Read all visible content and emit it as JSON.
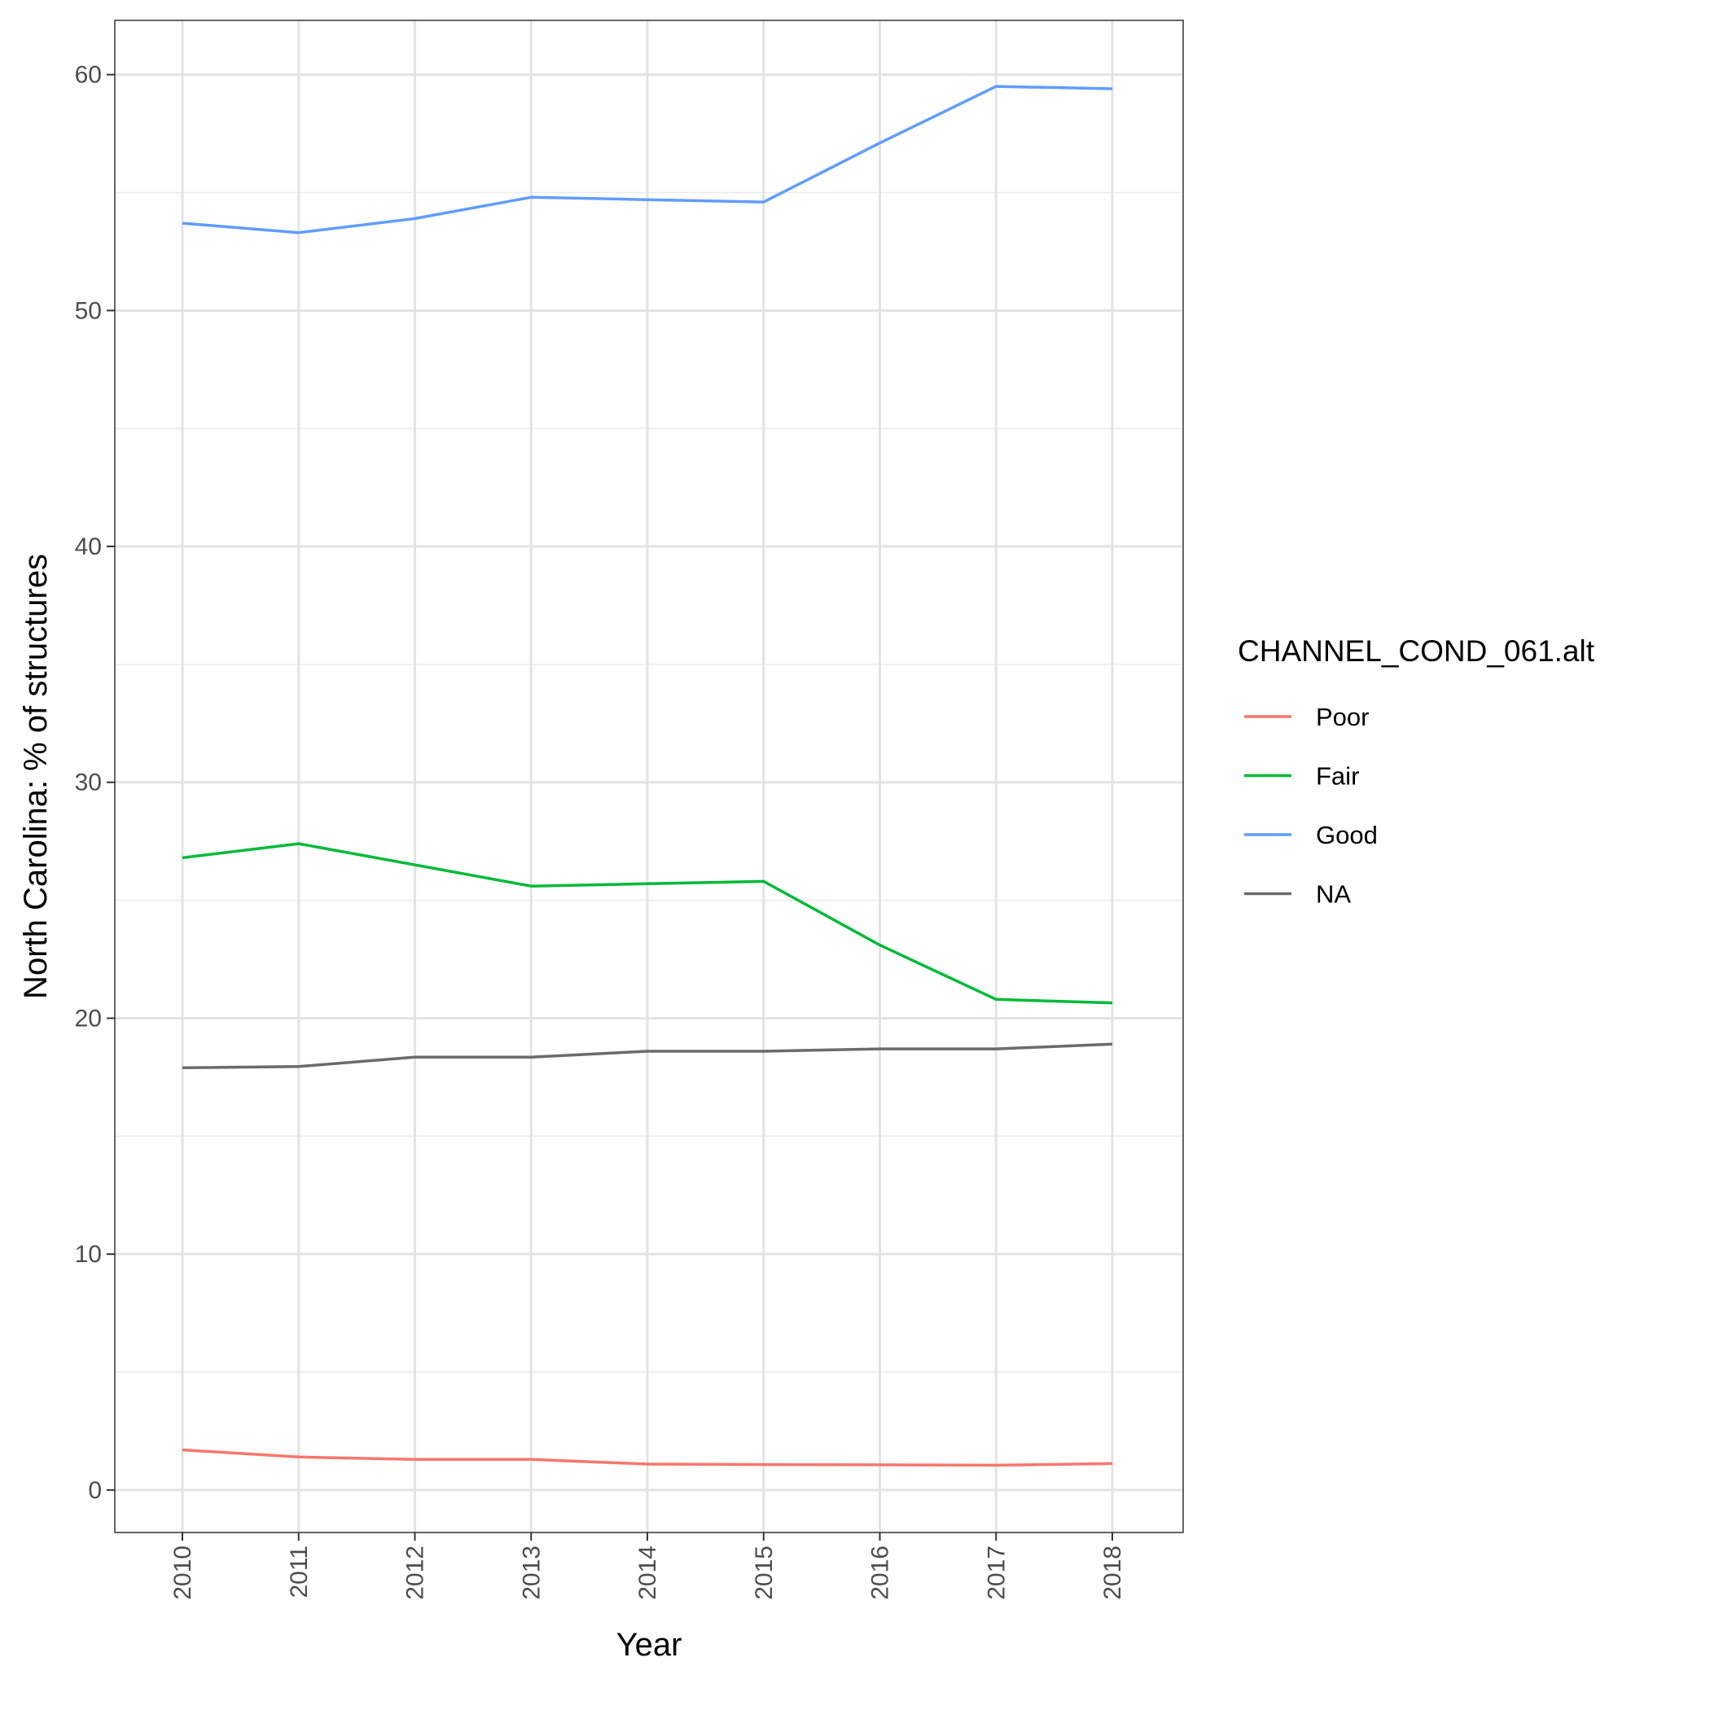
{
  "chart_data": {
    "type": "line",
    "xlabel": "Year",
    "ylabel": "North Carolina: % of structures",
    "x": [
      "2010",
      "2011",
      "2012",
      "2013",
      "2014",
      "2015",
      "2016",
      "2017",
      "2018"
    ],
    "ylim": [
      -1.8,
      62.3
    ],
    "yticks": [
      0,
      10,
      20,
      30,
      40,
      50,
      60
    ],
    "grid": true,
    "legend": {
      "title": "CHANNEL_COND_061.alt",
      "placement": "right"
    },
    "series": [
      {
        "name": "Poor",
        "color": "#F8766D",
        "values": [
          1.7,
          1.4,
          1.3,
          1.3,
          1.1,
          1.08,
          1.07,
          1.05,
          1.12
        ]
      },
      {
        "name": "Fair",
        "color": "#00BA38",
        "values": [
          26.8,
          27.4,
          26.5,
          25.6,
          25.7,
          25.8,
          23.1,
          20.8,
          20.65
        ]
      },
      {
        "name": "Good",
        "color": "#619CFF",
        "values": [
          53.7,
          53.3,
          53.9,
          54.8,
          54.7,
          54.6,
          57.1,
          59.5,
          59.4
        ]
      },
      {
        "name": "NA",
        "color": "#6B6B6B",
        "values": [
          17.9,
          17.95,
          18.35,
          18.35,
          18.6,
          18.6,
          18.7,
          18.7,
          18.9
        ]
      }
    ]
  }
}
